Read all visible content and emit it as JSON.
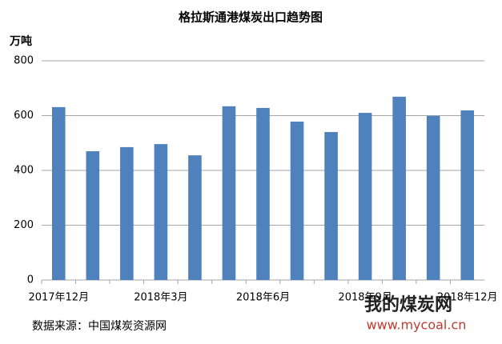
{
  "chart_data": {
    "type": "bar",
    "title": "格拉斯通港煤炭出口趋势图",
    "y_unit": "万吨",
    "categories": [
      "2017年12月",
      null,
      null,
      "2018年3月",
      null,
      null,
      "2018年6月",
      null,
      null,
      "2018年9月",
      null,
      null,
      "2018年12月"
    ],
    "values": [
      631,
      470,
      485,
      496,
      455,
      634,
      628,
      578,
      540,
      610,
      669,
      599,
      619
    ],
    "color": "#4f81bd",
    "ylim": [
      0,
      800
    ],
    "yticks": [
      0,
      200,
      400,
      600,
      800
    ],
    "grid": true,
    "source": "数据来源：中国煤炭资源网",
    "watermark": {
      "name": "我的煤炭网",
      "url": "www.mycoal.cn"
    }
  }
}
